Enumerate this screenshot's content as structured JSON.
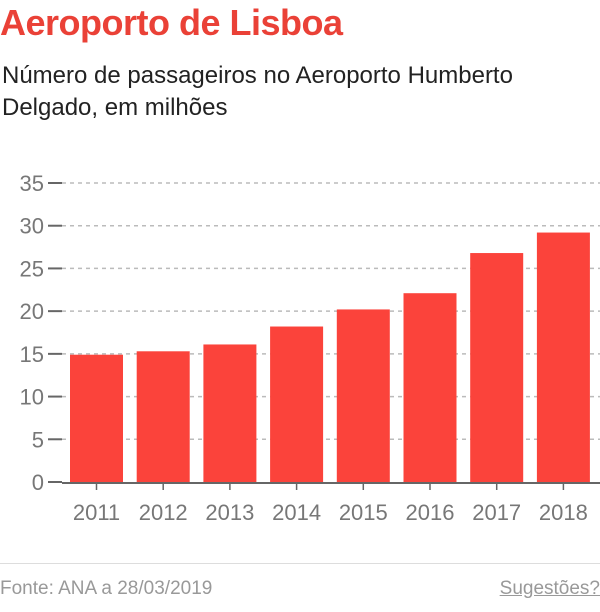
{
  "header": {
    "title": "Aeroporto de Lisboa",
    "subtitle": "Número de passageiros no Aeroporto Humberto Delgado, em milhões"
  },
  "footer": {
    "source": "Fonte: ANA a 28/03/2019",
    "suggestions_link": "Sugestões?"
  },
  "colors": {
    "bar": "#fb433b",
    "title": "#ea4137"
  },
  "chart_data": {
    "type": "bar",
    "title": "Aeroporto de Lisboa",
    "subtitle": "Número de passageiros no Aeroporto Humberto Delgado, em milhões",
    "categories": [
      "2011",
      "2012",
      "2013",
      "2014",
      "2015",
      "2016",
      "2017",
      "2018"
    ],
    "values": [
      14.9,
      15.3,
      16.1,
      18.2,
      20.2,
      22.1,
      26.8,
      29.2
    ],
    "ylim": [
      0,
      35
    ],
    "yticks": [
      "0",
      "5",
      "10",
      "15",
      "20",
      "25",
      "30",
      "35"
    ],
    "xlabel": "",
    "ylabel": "",
    "grid": true
  }
}
